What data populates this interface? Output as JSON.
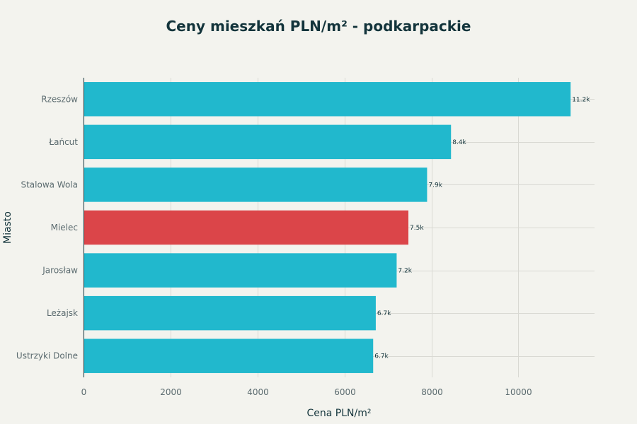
{
  "chart_data": {
    "type": "bar",
    "orientation": "horizontal",
    "title": "Ceny mieszkań PLN/m² - podkarpackie",
    "xlabel": "Cena PLN/m²",
    "ylabel": "Miasto",
    "xlim": [
      0,
      11750
    ],
    "xticks": [
      0,
      2000,
      4000,
      6000,
      8000,
      10000
    ],
    "grid": true,
    "categories": [
      "Rzeszów",
      "Łańcut",
      "Stalowa Wola",
      "Mielec",
      "Jarosław",
      "Leżajsk",
      "Ustrzyki Dolne"
    ],
    "values": [
      11200,
      8450,
      7900,
      7470,
      7200,
      6720,
      6660
    ],
    "data_labels": [
      "11.2k",
      "8.4k",
      "7.9k",
      "7.5k",
      "7.2k",
      "6.7k",
      "6.7k"
    ],
    "highlight": "Mielec",
    "colors": {
      "default": "#21b8cd",
      "highlight": "#db4549",
      "background": "#f3f3ee",
      "text": "#13343b",
      "tick": "#5b6b6f",
      "grid": "#d9d9d3"
    }
  }
}
